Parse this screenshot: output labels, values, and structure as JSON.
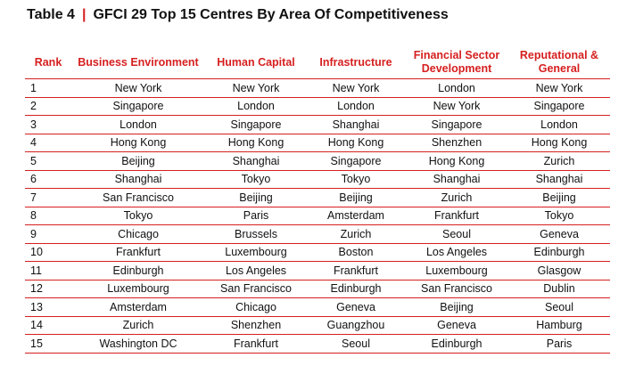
{
  "title": {
    "prefix": "Table  4",
    "separator": "|",
    "text": "GFCI 29  Top 15 Centres By Area Of Competitiveness"
  },
  "columns": [
    "Rank",
    "Business Environment",
    "Human Capital",
    "Infrastructure",
    "Financial Sector Development",
    "Reputational & General"
  ],
  "rows": [
    [
      "1",
      "New York",
      "New York",
      "New York",
      "London",
      "New York"
    ],
    [
      "2",
      "Singapore",
      "London",
      "London",
      "New York",
      "Singapore"
    ],
    [
      "3",
      "London",
      "Singapore",
      "Shanghai",
      "Singapore",
      "London"
    ],
    [
      "4",
      "Hong Kong",
      "Hong Kong",
      "Hong Kong",
      "Shenzhen",
      "Hong Kong"
    ],
    [
      "5",
      "Beijing",
      "Shanghai",
      "Singapore",
      "Hong Kong",
      "Zurich"
    ],
    [
      "6",
      "Shanghai",
      "Tokyo",
      "Tokyo",
      "Shanghai",
      "Shanghai"
    ],
    [
      "7",
      "San Francisco",
      "Beijing",
      "Beijing",
      "Zurich",
      "Beijing"
    ],
    [
      "8",
      "Tokyo",
      "Paris",
      "Amsterdam",
      "Frankfurt",
      "Tokyo"
    ],
    [
      "9",
      "Chicago",
      "Brussels",
      "Zurich",
      "Seoul",
      "Geneva"
    ],
    [
      "10",
      "Frankfurt",
      "Luxembourg",
      "Boston",
      "Los Angeles",
      "Edinburgh"
    ],
    [
      "11",
      "Edinburgh",
      "Los Angeles",
      "Frankfurt",
      "Luxembourg",
      "Glasgow"
    ],
    [
      "12",
      "Luxembourg",
      "San Francisco",
      "Edinburgh",
      "San Francisco",
      "Dublin"
    ],
    [
      "13",
      "Amsterdam",
      "Chicago",
      "Geneva",
      "Beijing",
      "Seoul"
    ],
    [
      "14",
      "Zurich",
      "Shenzhen",
      "Guangzhou",
      "Geneva",
      "Hamburg"
    ],
    [
      "15",
      "Washington DC",
      "Frankfurt",
      "Seoul",
      "Edinburgh",
      "Paris"
    ]
  ],
  "colors": {
    "accent": "#d61f1f",
    "text": "#111111"
  }
}
